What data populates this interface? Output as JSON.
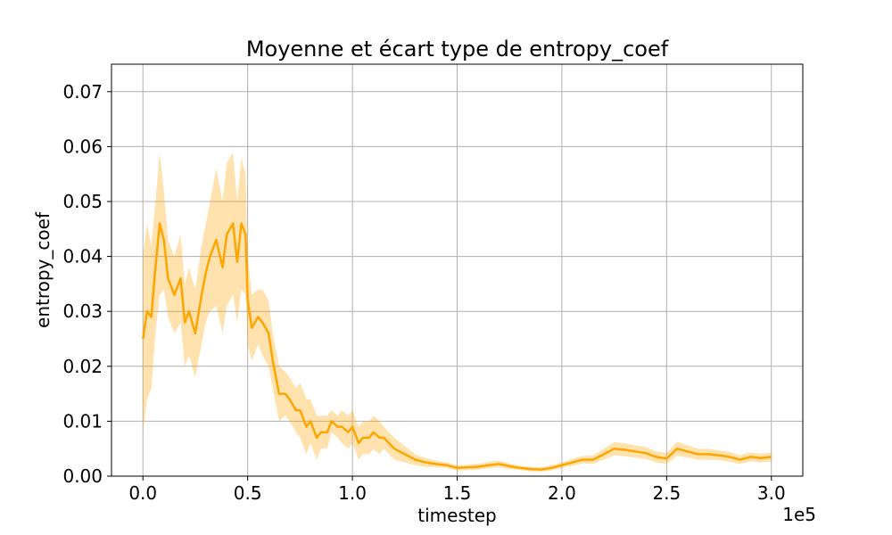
{
  "chart_data": {
    "type": "line",
    "title": "Moyenne et écart type de entropy_coef",
    "xlabel": "timestep",
    "ylabel": "entropy_coef",
    "x_offset_label": "1e5",
    "xlim": [
      -0.15,
      3.15
    ],
    "ylim": [
      0,
      0.075
    ],
    "x_ticks": [
      0.0,
      0.5,
      1.0,
      1.5,
      2.0,
      2.5,
      3.0
    ],
    "x_tick_labels": [
      "0.0",
      "0.5",
      "1.0",
      "1.5",
      "2.0",
      "2.5",
      "3.0"
    ],
    "y_ticks": [
      0.0,
      0.01,
      0.02,
      0.03,
      0.04,
      0.05,
      0.06,
      0.07
    ],
    "y_tick_labels": [
      "0.00",
      "0.01",
      "0.02",
      "0.03",
      "0.04",
      "0.05",
      "0.06",
      "0.07"
    ],
    "grid": true,
    "colors": {
      "line": "#ffa500",
      "band": "#ffa500"
    },
    "series": [
      {
        "x": [
          0.0,
          0.02,
          0.04,
          0.06,
          0.08,
          0.1,
          0.12,
          0.15,
          0.18,
          0.2,
          0.22,
          0.25,
          0.28,
          0.3,
          0.32,
          0.35,
          0.38,
          0.4,
          0.43,
          0.45,
          0.47,
          0.49,
          0.5,
          0.52,
          0.55,
          0.57,
          0.6,
          0.62,
          0.65,
          0.68,
          0.7,
          0.73,
          0.75,
          0.78,
          0.8,
          0.83,
          0.85,
          0.88,
          0.9,
          0.93,
          0.95,
          0.98,
          1.0,
          1.03,
          1.05,
          1.08,
          1.1,
          1.13,
          1.15,
          1.2,
          1.25,
          1.3,
          1.35,
          1.4,
          1.45,
          1.5,
          1.55,
          1.6,
          1.65,
          1.7,
          1.75,
          1.8,
          1.85,
          1.9,
          1.95,
          2.0,
          2.05,
          2.1,
          2.15,
          2.2,
          2.25,
          2.3,
          2.35,
          2.4,
          2.45,
          2.5,
          2.55,
          2.6,
          2.65,
          2.7,
          2.75,
          2.8,
          2.85,
          2.9,
          2.95,
          3.0
        ],
        "mean": [
          0.025,
          0.03,
          0.029,
          0.038,
          0.046,
          0.043,
          0.036,
          0.033,
          0.036,
          0.028,
          0.03,
          0.026,
          0.033,
          0.037,
          0.04,
          0.043,
          0.038,
          0.044,
          0.046,
          0.039,
          0.046,
          0.044,
          0.032,
          0.027,
          0.029,
          0.028,
          0.026,
          0.021,
          0.015,
          0.015,
          0.014,
          0.012,
          0.012,
          0.009,
          0.01,
          0.007,
          0.008,
          0.008,
          0.01,
          0.009,
          0.009,
          0.008,
          0.009,
          0.006,
          0.007,
          0.007,
          0.008,
          0.007,
          0.007,
          0.005,
          0.004,
          0.003,
          0.0025,
          0.0022,
          0.002,
          0.0015,
          0.0016,
          0.0017,
          0.002,
          0.0022,
          0.0018,
          0.0015,
          0.0013,
          0.0012,
          0.0015,
          0.002,
          0.0025,
          0.003,
          0.003,
          0.004,
          0.005,
          0.0048,
          0.0045,
          0.0042,
          0.0035,
          0.0032,
          0.005,
          0.0045,
          0.004,
          0.004,
          0.0038,
          0.0035,
          0.003,
          0.0035,
          0.0033,
          0.0035
        ],
        "upper": [
          0.04,
          0.046,
          0.042,
          0.05,
          0.059,
          0.052,
          0.043,
          0.04,
          0.044,
          0.035,
          0.038,
          0.034,
          0.042,
          0.046,
          0.05,
          0.056,
          0.05,
          0.057,
          0.059,
          0.05,
          0.058,
          0.055,
          0.04,
          0.033,
          0.034,
          0.034,
          0.032,
          0.026,
          0.02,
          0.019,
          0.018,
          0.016,
          0.017,
          0.014,
          0.014,
          0.011,
          0.011,
          0.011,
          0.012,
          0.011,
          0.012,
          0.011,
          0.012,
          0.009,
          0.01,
          0.01,
          0.011,
          0.01,
          0.009,
          0.007,
          0.0055,
          0.004,
          0.0033,
          0.0028,
          0.0025,
          0.002,
          0.0021,
          0.0022,
          0.0026,
          0.0028,
          0.0023,
          0.0019,
          0.0017,
          0.0016,
          0.002,
          0.0025,
          0.0031,
          0.0037,
          0.0038,
          0.005,
          0.0062,
          0.006,
          0.0056,
          0.0053,
          0.0045,
          0.0042,
          0.0063,
          0.0056,
          0.005,
          0.005,
          0.0047,
          0.0044,
          0.0038,
          0.0043,
          0.0041,
          0.0043
        ],
        "lower": [
          0.008,
          0.014,
          0.016,
          0.026,
          0.033,
          0.034,
          0.029,
          0.026,
          0.028,
          0.02,
          0.022,
          0.018,
          0.024,
          0.028,
          0.03,
          0.031,
          0.026,
          0.031,
          0.033,
          0.028,
          0.034,
          0.033,
          0.024,
          0.021,
          0.024,
          0.022,
          0.02,
          0.016,
          0.01,
          0.011,
          0.01,
          0.008,
          0.007,
          0.004,
          0.006,
          0.003,
          0.005,
          0.005,
          0.008,
          0.007,
          0.006,
          0.005,
          0.006,
          0.003,
          0.004,
          0.004,
          0.005,
          0.004,
          0.005,
          0.003,
          0.0025,
          0.002,
          0.0017,
          0.0016,
          0.0015,
          0.001,
          0.0011,
          0.0012,
          0.0014,
          0.0016,
          0.0013,
          0.0011,
          0.0009,
          0.0008,
          0.001,
          0.0015,
          0.0019,
          0.0023,
          0.0022,
          0.003,
          0.0038,
          0.0036,
          0.0034,
          0.0031,
          0.0025,
          0.0022,
          0.0037,
          0.0034,
          0.003,
          0.003,
          0.0029,
          0.0026,
          0.0022,
          0.0027,
          0.0025,
          0.0027
        ]
      }
    ]
  }
}
